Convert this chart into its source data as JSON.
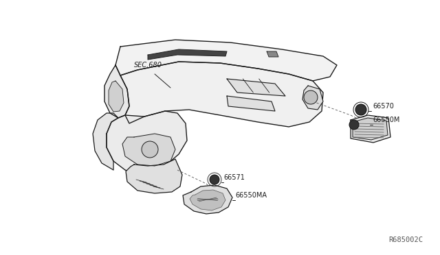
{
  "background_color": "#ffffff",
  "line_color": "#1a1a1a",
  "label_color": "#1a1a1a",
  "watermark": "R685002C",
  "fig_width": 6.4,
  "fig_height": 3.72,
  "dpi": 100,
  "labels": {
    "SEC680": "SEC.680",
    "p66570": "66570",
    "p66550M": "66550M",
    "p66571": "66571",
    "p66550MA": "66550MA"
  }
}
